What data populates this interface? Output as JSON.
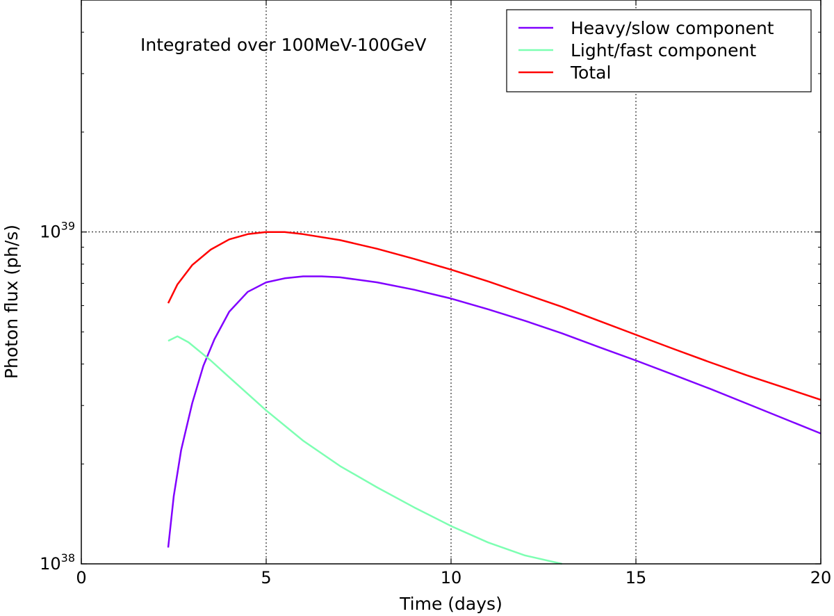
{
  "chart_data": {
    "type": "line",
    "title": "",
    "annotation": "Integrated over 100MeV-100GeV",
    "xlabel": "Time (days)",
    "ylabel": "Photon flux (ph/s)",
    "xlim": [
      0,
      20
    ],
    "ylim": [
      1e+38,
      5e+39
    ],
    "yscale": "log",
    "grid": true,
    "grid_style": "dotted",
    "legend_position": "top-right",
    "x_ticks": [
      {
        "value": 0,
        "label": "0"
      },
      {
        "value": 5,
        "label": "5"
      },
      {
        "value": 10,
        "label": "10"
      },
      {
        "value": 15,
        "label": "15"
      },
      {
        "value": 20,
        "label": "20"
      }
    ],
    "y_ticks": [
      {
        "value": 1e+38,
        "base": "10",
        "exp": "38"
      },
      {
        "value": 1e+39,
        "base": "10",
        "exp": "39"
      }
    ],
    "series": [
      {
        "name": "Heavy/slow component",
        "color": "#8000ff",
        "x": [
          2.35,
          2.5,
          2.7,
          3.0,
          3.3,
          3.6,
          4.0,
          4.5,
          5.0,
          5.5,
          6.0,
          6.5,
          7.0,
          8.0,
          9.0,
          10.0,
          11.0,
          12.0,
          13.0,
          14.0,
          15.0,
          16.0,
          17.0,
          18.0,
          19.0,
          20.0
        ],
        "y": [
          1.12e+38,
          1.6e+38,
          2.2e+38,
          3.05e+38,
          3.95e+38,
          4.75e+38,
          5.75e+38,
          6.6e+38,
          7.05e+38,
          7.25e+38,
          7.35e+38,
          7.35e+38,
          7.3e+38,
          7.05e+38,
          6.7e+38,
          6.3e+38,
          5.85e+38,
          5.4e+38,
          4.95e+38,
          4.5e+38,
          4.1e+38,
          3.72e+38,
          3.37e+38,
          3.04e+38,
          2.74e+38,
          2.47e+38
        ]
      },
      {
        "name": "Light/fast component",
        "color": "#7dffb2",
        "x": [
          2.35,
          2.6,
          2.9,
          3.5,
          4.0,
          5.0,
          6.0,
          7.0,
          8.0,
          9.0,
          10.0,
          11.0,
          12.0,
          13.0
        ],
        "y": [
          4.7e+38,
          4.85e+38,
          4.65e+38,
          4.1e+38,
          3.65e+38,
          2.9e+38,
          2.35e+38,
          1.97e+38,
          1.7e+38,
          1.48e+38,
          1.3e+38,
          1.16e+38,
          1.06e+38,
          1e+38
        ]
      },
      {
        "name": "Total",
        "color": "#ff0000",
        "x": [
          2.35,
          2.6,
          3.0,
          3.5,
          4.0,
          4.5,
          5.0,
          5.5,
          6.0,
          7.0,
          8.0,
          9.0,
          10.0,
          11.0,
          12.0,
          13.0,
          14.0,
          15.0,
          16.0,
          17.0,
          18.0,
          19.0,
          20.0
        ],
        "y": [
          6.1e+38,
          6.95e+38,
          7.95e+38,
          8.85e+38,
          9.5e+38,
          9.85e+38,
          1e+39,
          1e+39,
          9.85e+38,
          9.45e+38,
          8.9e+38,
          8.3e+38,
          7.7e+38,
          7.1e+38,
          6.5e+38,
          5.95e+38,
          5.4e+38,
          4.9e+38,
          4.45e+38,
          4.05e+38,
          3.7e+38,
          3.4e+38,
          3.12e+38
        ]
      }
    ]
  }
}
